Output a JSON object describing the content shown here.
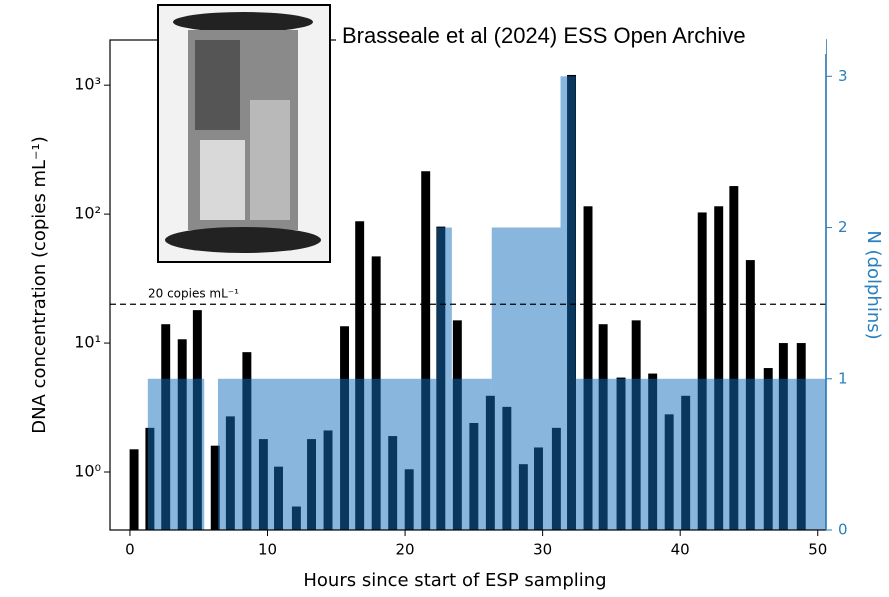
{
  "chart_data": {
    "type": "bar",
    "citation": "Brasseale et al (2024) ESS Open Archive",
    "xlabel": "Hours since start of ESP sampling",
    "ylabel": "DNA concentration (copies mL⁻¹)",
    "y2label": "N (dolphins)",
    "x": [
      0.3,
      1.45,
      2.6,
      3.8,
      4.9,
      6.2,
      7.3,
      8.5,
      9.7,
      10.8,
      12.1,
      13.2,
      14.4,
      15.6,
      16.7,
      17.9,
      19.1,
      20.3,
      21.5,
      22.6,
      23.8,
      25.0,
      26.2,
      27.4,
      28.6,
      29.7,
      31.0,
      32.1,
      33.3,
      34.4,
      35.7,
      36.8,
      38.0,
      39.2,
      40.4,
      41.6,
      42.8,
      43.9,
      45.1,
      46.4,
      47.5,
      48.8
    ],
    "values": [
      1.5,
      2.2,
      14,
      10.7,
      18,
      1.6,
      2.7,
      8.5,
      1.8,
      1.1,
      0.54,
      1.8,
      2.1,
      13.5,
      88,
      47,
      1.9,
      1.05,
      215,
      80,
      15,
      2.4,
      3.9,
      3.2,
      1.15,
      1.55,
      2.2,
      1200,
      115,
      14,
      5.4,
      15,
      5.8,
      2.8,
      3.9,
      103,
      115,
      165,
      44,
      6.4,
      10,
      10
    ],
    "color": "#000000",
    "dolphins": {
      "axis": "y2",
      "bins": [
        1.3,
        5.4,
        6.4,
        22.3,
        23.4,
        26.3,
        31.3,
        32.4,
        50.6
      ],
      "counts": [
        1,
        0,
        1,
        2,
        1,
        2,
        3,
        1
      ],
      "color": "#126eba",
      "alpha": 0.5
    },
    "threshold": {
      "value": 20,
      "label": "20 copies mL⁻¹"
    },
    "ylog": true,
    "xlim": [
      -1.45,
      50.6
    ],
    "ylim": [
      0.355,
      2240
    ],
    "y2lim": [
      0,
      3.24
    ],
    "xticks": [
      0,
      10,
      20,
      30,
      40,
      50
    ],
    "yticks": [
      {
        "value": 1,
        "label": "10⁰"
      },
      {
        "value": 10,
        "label": "10¹"
      },
      {
        "value": 100,
        "label": "10²"
      },
      {
        "value": 1000,
        "label": "10³"
      }
    ],
    "y2ticks": [
      0,
      1,
      2,
      3
    ],
    "y2color": "#2a7fbf"
  }
}
